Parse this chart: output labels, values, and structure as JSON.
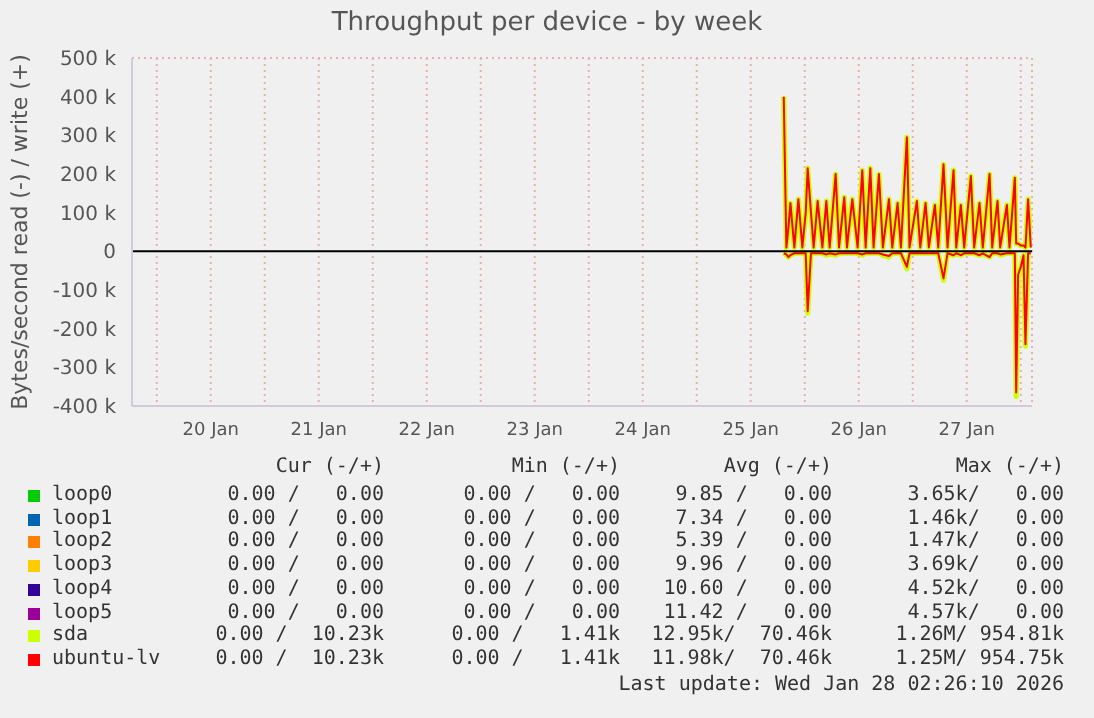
{
  "chart_data": {
    "type": "line",
    "title": "Throughput per device - by week",
    "ylabel": "Bytes/second read (-) / write (+)",
    "xlim": [
      "2026-01-19T18:30",
      "2026-01-28T02:30"
    ],
    "xticks": [
      {
        "value": "2026-01-20T00:00",
        "label": null
      },
      {
        "value": "2026-01-20T12:00",
        "label": "20 Jan"
      },
      {
        "value": "2026-01-21T00:00",
        "label": null
      },
      {
        "value": "2026-01-21T12:00",
        "label": "21 Jan"
      },
      {
        "value": "2026-01-22T00:00",
        "label": null
      },
      {
        "value": "2026-01-22T12:00",
        "label": "22 Jan"
      },
      {
        "value": "2026-01-23T00:00",
        "label": null
      },
      {
        "value": "2026-01-23T12:00",
        "label": "23 Jan"
      },
      {
        "value": "2026-01-24T00:00",
        "label": null
      },
      {
        "value": "2026-01-24T12:00",
        "label": "24 Jan"
      },
      {
        "value": "2026-01-25T00:00",
        "label": null
      },
      {
        "value": "2026-01-25T12:00",
        "label": "25 Jan"
      },
      {
        "value": "2026-01-26T00:00",
        "label": null
      },
      {
        "value": "2026-01-26T12:00",
        "label": "26 Jan"
      },
      {
        "value": "2026-01-27T00:00",
        "label": null
      },
      {
        "value": "2026-01-27T12:00",
        "label": "27 Jan"
      },
      {
        "value": "2026-01-28T00:00",
        "label": null
      }
    ],
    "ylim": [
      -400000,
      500000
    ],
    "yticks": [
      {
        "value": -400000,
        "label": "-400 k"
      },
      {
        "value": -300000,
        "label": "-300 k"
      },
      {
        "value": -200000,
        "label": "-200 k"
      },
      {
        "value": -100000,
        "label": "-100 k"
      },
      0,
      {
        "value": 100000,
        "label": "100 k"
      },
      {
        "value": 200000,
        "label": "200 k"
      },
      {
        "value": 300000,
        "label": "300 k"
      },
      {
        "value": 400000,
        "label": "400 k"
      },
      {
        "value": 500000,
        "label": "500 k"
      }
    ],
    "grid": true,
    "legend": "bottom",
    "ref_lines": [
      {
        "axis": "y",
        "value": 0,
        "color": "#000000"
      }
    ],
    "x": [
      "2026-01-25T19:20",
      "2026-01-25T19:55",
      "2026-01-25T20:22",
      "2026-01-25T20:49",
      "2026-01-25T21:41",
      "2026-01-25T22:35",
      "2026-01-25T23:28",
      "2026-01-26T00:13",
      "2026-01-26T00:39",
      "2026-01-26T01:23",
      "2026-01-26T01:59",
      "2026-01-26T02:52",
      "2026-01-26T03:55",
      "2026-01-26T04:48",
      "2026-01-26T05:32",
      "2026-01-26T06:52",
      "2026-01-26T07:37",
      "2026-01-26T08:47",
      "2026-01-26T09:23",
      "2026-01-26T10:34",
      "2026-01-26T11:45",
      "2026-01-26T12:47",
      "2026-01-26T13:32",
      "2026-01-26T14:34",
      "2026-01-26T15:18",
      "2026-01-26T16:29",
      "2026-01-26T17:22",
      "2026-01-26T18:43",
      "2026-01-26T19:27",
      "2026-01-26T20:38",
      "2026-01-26T21:22",
      "2026-01-26T22:42",
      "2026-01-26T23:17",
      "2026-01-27T00:55",
      "2026-01-27T01:40",
      "2026-01-27T02:51",
      "2026-01-27T03:35",
      "2026-01-27T04:55",
      "2026-01-27T05:40",
      "2026-01-27T06:50",
      "2026-01-27T07:44",
      "2026-01-27T09:04",
      "2026-01-27T09:40",
      "2026-01-27T10:41",
      "2026-01-27T11:26",
      "2026-01-27T12:55",
      "2026-01-27T13:39",
      "2026-01-27T14:50",
      "2026-01-27T15:34",
      "2026-01-27T17:04",
      "2026-01-27T17:39",
      "2026-01-27T18:50",
      "2026-01-27T19:26",
      "2026-01-27T20:55",
      "2026-01-27T21:30",
      "2026-01-27T22:41",
      "2026-01-27T22:59",
      "2026-01-27T23:25",
      "2026-01-28T00:01",
      "2026-01-28T00:37",
      "2026-01-28T01:03",
      "2026-01-28T01:38",
      "2026-01-28T02:14"
    ],
    "series": [
      {
        "name": "loop0",
        "color": "#00cc00",
        "values": [
          null,
          null,
          null,
          null,
          null,
          null,
          null,
          null,
          null,
          null,
          null,
          null,
          null,
          null,
          null,
          null,
          null,
          null,
          null,
          null,
          null,
          null,
          null,
          null,
          null,
          null,
          null,
          null,
          null,
          null,
          null,
          null,
          null,
          null,
          null,
          null,
          null,
          null,
          null,
          null,
          null,
          null,
          null,
          null,
          null,
          null,
          null,
          null,
          null,
          null,
          null,
          null,
          null,
          null,
          null,
          null,
          null,
          null,
          null,
          null,
          null,
          null,
          null
        ]
      },
      {
        "name": "loop1",
        "color": "#0066b3",
        "values": [
          null,
          null,
          null,
          null,
          null,
          null,
          null,
          null,
          null,
          null,
          null,
          null,
          null,
          null,
          null,
          null,
          null,
          null,
          null,
          null,
          null,
          null,
          null,
          null,
          null,
          null,
          null,
          null,
          null,
          null,
          null,
          null,
          null,
          null,
          null,
          null,
          null,
          null,
          null,
          null,
          null,
          null,
          null,
          null,
          null,
          null,
          null,
          null,
          null,
          null,
          null,
          null,
          null,
          null,
          null,
          null,
          null,
          null,
          null,
          null,
          null,
          null,
          null
        ]
      },
      {
        "name": "loop2",
        "color": "#ff8000",
        "values": [
          null,
          null,
          null,
          null,
          null,
          null,
          null,
          null,
          null,
          null,
          null,
          null,
          null,
          null,
          null,
          null,
          null,
          null,
          null,
          null,
          null,
          null,
          null,
          null,
          null,
          null,
          null,
          null,
          null,
          null,
          null,
          null,
          null,
          null,
          null,
          null,
          null,
          null,
          null,
          null,
          null,
          null,
          null,
          null,
          null,
          null,
          null,
          null,
          null,
          null,
          null,
          null,
          null,
          null,
          null,
          null,
          null,
          null,
          null,
          null,
          null,
          null,
          null
        ]
      },
      {
        "name": "loop3",
        "color": "#ffcc00",
        "values": [
          null,
          null,
          null,
          null,
          null,
          null,
          null,
          null,
          null,
          null,
          null,
          null,
          null,
          null,
          null,
          null,
          null,
          null,
          null,
          null,
          null,
          null,
          null,
          null,
          null,
          null,
          null,
          null,
          null,
          null,
          null,
          null,
          null,
          null,
          null,
          null,
          null,
          null,
          null,
          null,
          null,
          null,
          null,
          null,
          null,
          null,
          null,
          null,
          null,
          null,
          null,
          null,
          null,
          null,
          null,
          null,
          null,
          null,
          null,
          null,
          null,
          null,
          null
        ]
      },
      {
        "name": "loop4",
        "color": "#330099",
        "values": [
          null,
          null,
          null,
          null,
          null,
          null,
          null,
          null,
          null,
          null,
          null,
          null,
          null,
          null,
          null,
          null,
          null,
          null,
          null,
          null,
          null,
          null,
          null,
          null,
          null,
          null,
          null,
          null,
          null,
          null,
          null,
          null,
          null,
          null,
          null,
          null,
          null,
          null,
          null,
          null,
          null,
          null,
          null,
          null,
          null,
          null,
          null,
          null,
          null,
          null,
          null,
          null,
          null,
          null,
          null,
          null,
          null,
          null,
          null,
          null,
          null,
          null,
          null
        ]
      },
      {
        "name": "loop5",
        "color": "#990099",
        "values": [
          null,
          null,
          null,
          null,
          null,
          null,
          null,
          null,
          null,
          null,
          null,
          null,
          null,
          null,
          null,
          null,
          null,
          null,
          null,
          null,
          null,
          null,
          null,
          null,
          null,
          null,
          null,
          null,
          null,
          null,
          null,
          null,
          null,
          null,
          null,
          null,
          null,
          null,
          null,
          null,
          null,
          null,
          null,
          null,
          null,
          null,
          null,
          null,
          null,
          null,
          null,
          null,
          null,
          null,
          null,
          null,
          null,
          null,
          null,
          null,
          null,
          null,
          null
        ]
      },
      {
        "name": "sda",
        "color": "#ccff00",
        "values": [
          400000,
          10000,
          60000,
          125000,
          10000,
          135000,
          10000,
          100000,
          215000,
          100000,
          10000,
          130000,
          10000,
          130000,
          10000,
          200000,
          10000,
          140000,
          10000,
          135000,
          10000,
          210000,
          10000,
          215000,
          10000,
          200000,
          10000,
          135000,
          10000,
          125000,
          10000,
          295000,
          10000,
          130000,
          10000,
          125000,
          10000,
          120000,
          10000,
          225000,
          10000,
          210000,
          10000,
          120000,
          10000,
          195000,
          10000,
          125000,
          10000,
          200000,
          10000,
          130000,
          10000,
          120000,
          10000,
          190000,
          20000,
          20000,
          15000,
          15000,
          10000,
          135000,
          10000
        ]
      },
      {
        "color": "#ccff00",
        "values": [
          -5000,
          -10000,
          -15000,
          -10000,
          -5000,
          -5000,
          -5000,
          -5000,
          -160000,
          -5000,
          -5000,
          -5000,
          -5000,
          -10000,
          -5000,
          -10000,
          -5000,
          -5000,
          -5000,
          -5000,
          -5000,
          -10000,
          -5000,
          -5000,
          -5000,
          -5000,
          -10000,
          -15000,
          -5000,
          -5000,
          -5000,
          -45000,
          -5000,
          -5000,
          -5000,
          -5000,
          -5000,
          -5000,
          -5000,
          -75000,
          -5000,
          -10000,
          -5000,
          -10000,
          -5000,
          -5000,
          -5000,
          -10000,
          -5000,
          -15000,
          -5000,
          -5000,
          -10000,
          -5000,
          -5000,
          -5000,
          -375000,
          -60000,
          -40000,
          -10000,
          -245000,
          -5000,
          -5000
        ]
      },
      {
        "name": "ubuntu-lv",
        "color": "#ff0000",
        "values": [
          400000,
          10000,
          60000,
          125000,
          10000,
          135000,
          10000,
          100000,
          215000,
          100000,
          10000,
          130000,
          10000,
          130000,
          10000,
          200000,
          10000,
          140000,
          10000,
          135000,
          10000,
          210000,
          10000,
          215000,
          10000,
          200000,
          10000,
          135000,
          10000,
          125000,
          10000,
          295000,
          10000,
          130000,
          10000,
          125000,
          10000,
          120000,
          10000,
          225000,
          10000,
          210000,
          10000,
          120000,
          10000,
          195000,
          10000,
          125000,
          10000,
          200000,
          10000,
          130000,
          10000,
          120000,
          10000,
          190000,
          20000,
          20000,
          15000,
          15000,
          10000,
          135000,
          10000
        ]
      },
      {
        "color": "#ff0000",
        "values": [
          -5000,
          -8000,
          -15000,
          -10000,
          -5000,
          -5000,
          -5000,
          -5000,
          -155000,
          -5000,
          -5000,
          -5000,
          -5000,
          -8000,
          -5000,
          -8000,
          -5000,
          -5000,
          -5000,
          -5000,
          -5000,
          -8000,
          -5000,
          -5000,
          -5000,
          -5000,
          -8000,
          -12000,
          -5000,
          -5000,
          -5000,
          -40000,
          -5000,
          -5000,
          -5000,
          -5000,
          -5000,
          -5000,
          -5000,
          -70000,
          -5000,
          -10000,
          -5000,
          -10000,
          -5000,
          -5000,
          -5000,
          -10000,
          -5000,
          -15000,
          -5000,
          -5000,
          -8000,
          -5000,
          -5000,
          -5000,
          -365000,
          -60000,
          -40000,
          -10000,
          -240000,
          -5000,
          -5000
        ]
      }
    ],
    "annotations": [
      "Cur (-/+)",
      "Min (-/+)",
      "Avg (-/+)",
      "Max (-/+)",
      "0.00 /   0.00",
      "0.00 /   0.00",
      "9.85 /   0.00",
      "3.65k/   0.00",
      "0.00 /   0.00",
      "0.00 /   0.00",
      "7.34 /   0.00",
      "1.46k/   0.00",
      "0.00 /   0.00",
      "0.00 /   0.00",
      "5.39 /   0.00",
      "1.47k/   0.00",
      "0.00 /   0.00",
      "0.00 /   0.00",
      "9.96 /   0.00",
      "3.69k/   0.00",
      "0.00 /   0.00",
      "0.00 /   0.00",
      "10.60 /   0.00",
      "4.52k/   0.00",
      "0.00 /   0.00",
      "0.00 /   0.00",
      "11.42 /   0.00",
      "4.57k/   0.00",
      "0.00 /  10.23k",
      "0.00 /   1.41k",
      "12.95k/  70.46k",
      "1.26M/ 954.81k",
      "0.00 /  10.23k",
      "0.00 /   1.41k",
      "11.98k/  70.46k",
      "1.25M/ 954.75k",
      "Last update: Wed Jan 28 02:26:10 2026"
    ]
  }
}
